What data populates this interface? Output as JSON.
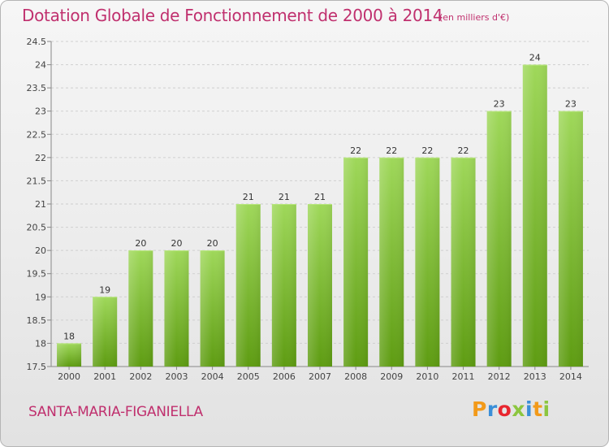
{
  "header": {
    "title": "Dotation Globale de Fonctionnement de 2000 à 2014",
    "unit": "(en milliers d'€)"
  },
  "footer": {
    "commune": "SANTA-MARIA-FIGANIELLA",
    "logo_text": "Proxiti"
  },
  "colors": {
    "title": "#c0306e",
    "bar_top": "#9fd85a",
    "bar_bottom": "#5e9c12",
    "logo": [
      "#f29a1a",
      "#3a8fd8",
      "#e8262f",
      "#8cc63f",
      "#3a8fd8",
      "#f29a1a",
      "#8cc63f"
    ]
  },
  "chart_data": {
    "type": "bar",
    "title": "Dotation Globale de Fonctionnement de 2000 à 2014",
    "xlabel": "",
    "ylabel": "",
    "categories": [
      "2000",
      "2001",
      "2002",
      "2003",
      "2004",
      "2005",
      "2006",
      "2007",
      "2008",
      "2009",
      "2010",
      "2011",
      "2012",
      "2013",
      "2014"
    ],
    "values": [
      18,
      19,
      20,
      20,
      20,
      21,
      21,
      21,
      22,
      22,
      22,
      22,
      23,
      24,
      23
    ],
    "labels": [
      "18",
      "19",
      "20",
      "20",
      "20",
      "21",
      "21",
      "21",
      "22",
      "22",
      "22",
      "22",
      "23",
      "24",
      "23"
    ],
    "ylim": [
      17.5,
      24.5
    ],
    "yticks": [
      "17.5",
      "18",
      "18.5",
      "19",
      "19.5",
      "20",
      "20.5",
      "21",
      "21.5",
      "22",
      "22.5",
      "23",
      "23.5",
      "24",
      "24.5"
    ],
    "grid": true
  }
}
